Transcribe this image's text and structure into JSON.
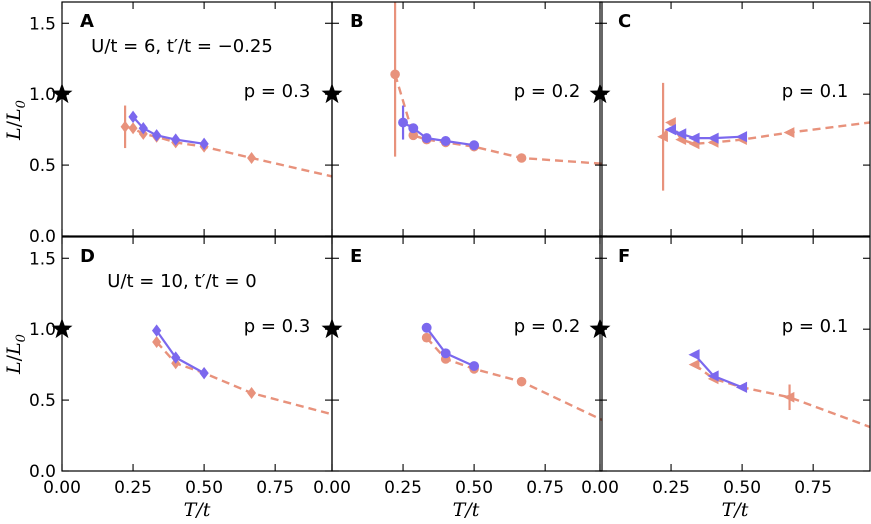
{
  "colors": {
    "orange": "#e8927c",
    "purple": "#7b68ee",
    "star": "#000000"
  },
  "chart_data": {
    "type": "line",
    "xlabel": "T/t",
    "ylabel": "L/L0",
    "ylabel_main": "L",
    "ylabel_sub": "0",
    "xlim": [
      0,
      0.95
    ],
    "ylim": [
      0,
      1.65
    ],
    "xticks": [
      0.0,
      0.25,
      0.5,
      0.75
    ],
    "xtick_labels": [
      "0.00",
      "0.25",
      "0.50",
      "0.75"
    ],
    "extra_xtick_label": "0.00",
    "yticks": [
      0.0,
      0.5,
      1.0,
      1.5
    ],
    "ytick_labels": [
      "0.0",
      "0.5",
      "1.0",
      "1.5"
    ],
    "panels": [
      {
        "letter": "A",
        "row": 0,
        "col": 0,
        "params_label": "U/t = 6, t′/t = −0.25",
        "doping_label": "p = 0.3",
        "marker": "diamond",
        "star": {
          "x": 0.0,
          "y": 1.0
        },
        "series": [
          {
            "name": "orange",
            "style": "dashed",
            "points": [
              [
                0.222,
                0.77
              ],
              [
                0.25,
                0.76
              ],
              [
                0.286,
                0.72
              ],
              [
                0.333,
                0.7
              ],
              [
                0.4,
                0.66
              ],
              [
                0.5,
                0.63
              ]
            ],
            "errors": [
              0.15,
              0,
              0,
              0,
              0,
              0
            ],
            "tail": [
              [
                0.667,
                0.55
              ],
              [
                0.95,
                0.42
              ]
            ]
          },
          {
            "name": "purple",
            "style": "solid",
            "points": [
              [
                0.25,
                0.84
              ],
              [
                0.286,
                0.76
              ],
              [
                0.333,
                0.71
              ],
              [
                0.4,
                0.68
              ],
              [
                0.5,
                0.65
              ]
            ]
          }
        ]
      },
      {
        "letter": "B",
        "row": 0,
        "col": 1,
        "doping_label": "p = 0.2",
        "marker": "circle",
        "star": {
          "x": 0.0,
          "y": 1.0
        },
        "series": [
          {
            "name": "orange",
            "style": "dashed",
            "points": [
              [
                0.222,
                1.14
              ],
              [
                0.286,
                0.71
              ],
              [
                0.333,
                0.68
              ],
              [
                0.4,
                0.66
              ],
              [
                0.5,
                0.63
              ]
            ],
            "errors": [
              0.58,
              0,
              0,
              0,
              0
            ],
            "tail": [
              [
                0.667,
                0.55
              ],
              [
                0.95,
                0.51
              ]
            ]
          },
          {
            "name": "purple",
            "style": "solid",
            "points": [
              [
                0.25,
                0.8
              ],
              [
                0.286,
                0.76
              ],
              [
                0.333,
                0.69
              ],
              [
                0.4,
                0.67
              ],
              [
                0.5,
                0.64
              ]
            ],
            "errors": [
              0.12,
              0,
              0,
              0,
              0
            ]
          }
        ]
      },
      {
        "letter": "C",
        "row": 0,
        "col": 2,
        "doping_label": "p = 0.1",
        "marker": "triangle-left",
        "star": {
          "x": 0.0,
          "y": 1.0
        },
        "series": [
          {
            "name": "orange",
            "style": "dashed",
            "points": [
              [
                0.222,
                0.7
              ],
              [
                0.25,
                0.8
              ],
              [
                0.286,
                0.68
              ],
              [
                0.333,
                0.65
              ],
              [
                0.4,
                0.66
              ],
              [
                0.5,
                0.68
              ]
            ],
            "errors": [
              0.38,
              0,
              0,
              0,
              0,
              0
            ],
            "tail": [
              [
                0.667,
                0.73
              ],
              [
                0.95,
                0.8
              ]
            ]
          },
          {
            "name": "purple",
            "style": "solid",
            "points": [
              [
                0.25,
                0.75
              ],
              [
                0.286,
                0.72
              ],
              [
                0.333,
                0.69
              ],
              [
                0.4,
                0.69
              ],
              [
                0.5,
                0.7
              ]
            ]
          }
        ]
      },
      {
        "letter": "D",
        "row": 1,
        "col": 0,
        "params_label": "U/t = 10, t′/t = 0",
        "doping_label": "p = 0.3",
        "marker": "diamond",
        "star": {
          "x": 0.0,
          "y": 1.0
        },
        "series": [
          {
            "name": "orange",
            "style": "dashed",
            "points": [
              [
                0.333,
                0.91
              ],
              [
                0.4,
                0.76
              ],
              [
                0.5,
                0.69
              ]
            ],
            "errors": [
              0,
              0,
              0
            ],
            "tail": [
              [
                0.667,
                0.55
              ],
              [
                0.95,
                0.4
              ]
            ]
          },
          {
            "name": "purple",
            "style": "solid",
            "points": [
              [
                0.333,
                0.99
              ],
              [
                0.4,
                0.8
              ],
              [
                0.5,
                0.69
              ]
            ]
          }
        ]
      },
      {
        "letter": "E",
        "row": 1,
        "col": 1,
        "doping_label": "p = 0.2",
        "marker": "circle",
        "star": {
          "x": 0.0,
          "y": 1.0
        },
        "series": [
          {
            "name": "orange",
            "style": "dashed",
            "points": [
              [
                0.333,
                0.94
              ],
              [
                0.4,
                0.79
              ],
              [
                0.5,
                0.72
              ]
            ],
            "errors": [
              0,
              0,
              0
            ],
            "tail": [
              [
                0.667,
                0.63
              ],
              [
                0.95,
                0.36
              ]
            ]
          },
          {
            "name": "purple",
            "style": "solid",
            "points": [
              [
                0.333,
                1.01
              ],
              [
                0.4,
                0.83
              ],
              [
                0.5,
                0.74
              ]
            ]
          }
        ]
      },
      {
        "letter": "F",
        "row": 1,
        "col": 2,
        "doping_label": "p = 0.1",
        "marker": "triangle-left",
        "star": {
          "x": 0.0,
          "y": 1.0
        },
        "series": [
          {
            "name": "orange",
            "style": "dashed",
            "points": [
              [
                0.333,
                0.75
              ],
              [
                0.4,
                0.65
              ],
              [
                0.5,
                0.59
              ]
            ],
            "errors": [
              0,
              0,
              0
            ],
            "tail": [
              [
                0.667,
                0.52
              ],
              [
                0.95,
                0.31
              ]
            ],
            "tail_errors": [
              0.09,
              0
            ]
          },
          {
            "name": "purple",
            "style": "solid",
            "points": [
              [
                0.333,
                0.82
              ],
              [
                0.4,
                0.67
              ],
              [
                0.5,
                0.59
              ]
            ]
          }
        ]
      }
    ]
  }
}
